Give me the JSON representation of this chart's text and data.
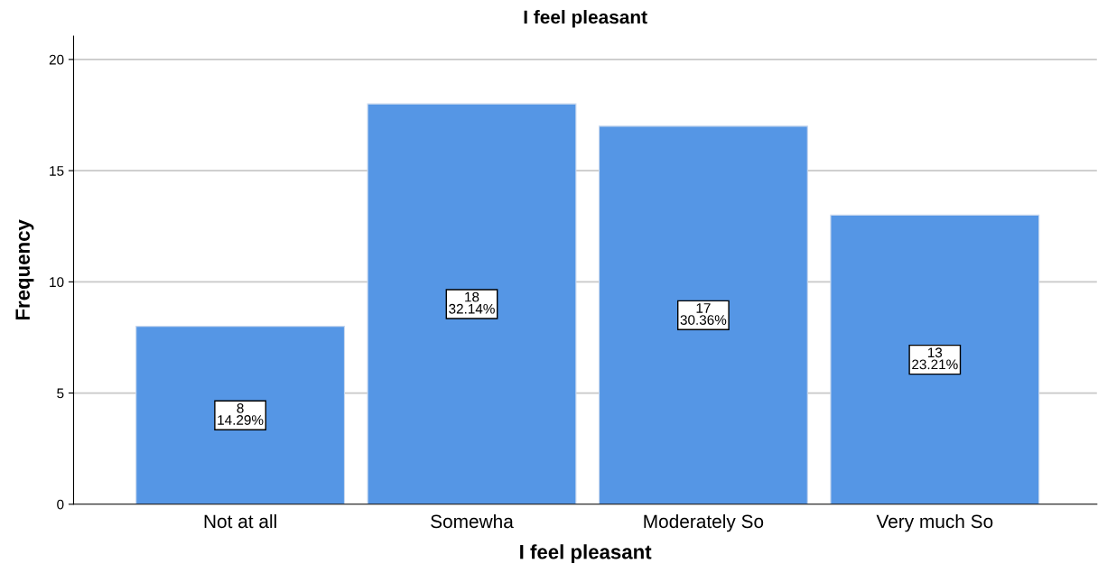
{
  "chart_data": {
    "type": "bar",
    "title": "I feel pleasant",
    "xlabel": "I feel pleasant",
    "ylabel": "Frequency",
    "categories": [
      "Not at all",
      "Somewha",
      "Moderately So",
      "Very much So"
    ],
    "values": [
      8,
      18,
      17,
      13
    ],
    "color": "#5596e5",
    "value_labels": [
      "8\n14.29%",
      "18\n32.14%",
      "17\n30.36%",
      "13\n23.21%"
    ],
    "ylim": [
      0,
      21.05
    ],
    "yticks": [
      0,
      5,
      10,
      15,
      20
    ],
    "grid": "y",
    "legend": false
  }
}
